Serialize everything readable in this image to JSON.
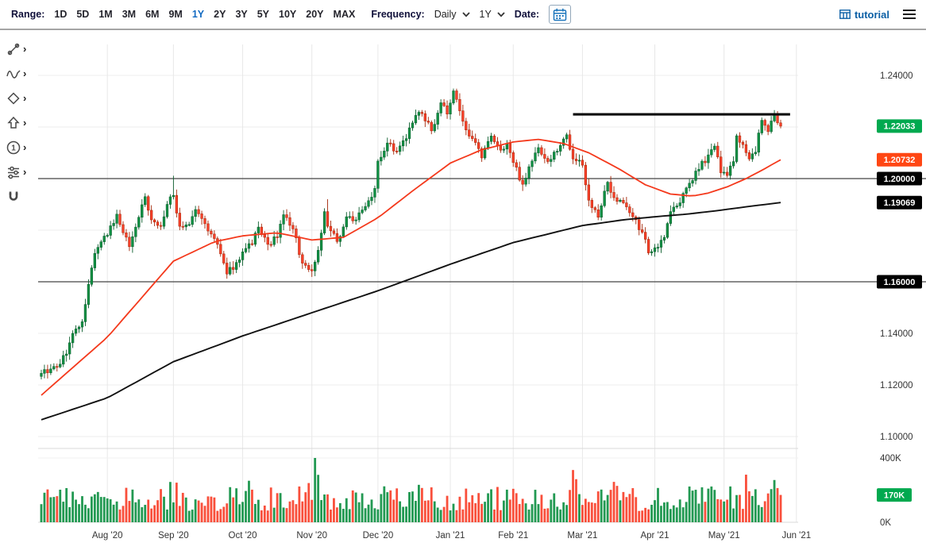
{
  "topbar": {
    "range_label": "Range:",
    "ranges": [
      "1D",
      "5D",
      "1M",
      "3M",
      "6M",
      "9M",
      "1Y",
      "2Y",
      "3Y",
      "5Y",
      "10Y",
      "20Y",
      "MAX"
    ],
    "selected_range": "1Y",
    "frequency_label": "Frequency:",
    "frequency_value": "Daily",
    "period_value": "1Y",
    "date_label": "Date:",
    "tutorial_label": "tutorial",
    "accent_color": "#146bc2"
  },
  "sidebar": {
    "tools": [
      {
        "name": "measure",
        "chevron": true
      },
      {
        "name": "indicators",
        "chevron": true
      },
      {
        "name": "shapes",
        "chevron": true
      },
      {
        "name": "arrow-annotation",
        "chevron": true
      },
      {
        "name": "numbered-annotation",
        "chevron": true
      },
      {
        "name": "compare-settings",
        "chevron": true
      },
      {
        "name": "magnet",
        "chevron": false
      }
    ]
  },
  "chart_data": {
    "type": "candlestick",
    "has_volume_pane": true,
    "x_labels": [
      {
        "label": "Aug '20",
        "i": 21
      },
      {
        "label": "Sep '20",
        "i": 42
      },
      {
        "label": "Oct '20",
        "i": 64
      },
      {
        "label": "Nov '20",
        "i": 86
      },
      {
        "label": "Dec '20",
        "i": 107
      },
      {
        "label": "Jan '21",
        "i": 130
      },
      {
        "label": "Feb '21",
        "i": 150
      },
      {
        "label": "Mar '21",
        "i": 172
      },
      {
        "label": "Apr '21",
        "i": 195
      },
      {
        "label": "May '21",
        "i": 217
      },
      {
        "label": "Jun '21",
        "i": 240
      }
    ],
    "y_axis": {
      "range": [
        1.095,
        1.25
      ],
      "gridline_prices": [
        1.24,
        1.22,
        1.2,
        1.18,
        1.16,
        1.14,
        1.12,
        1.1
      ],
      "visible_ticks": [
        {
          "label": "1.24000",
          "price": 1.24
        },
        {
          "label": "1.14000",
          "price": 1.14
        },
        {
          "label": "1.12000",
          "price": 1.12
        },
        {
          "label": "1.10000",
          "price": 1.1
        }
      ]
    },
    "badges": [
      {
        "label": "1.22033",
        "price": 1.22033,
        "color": "#00a94f",
        "role": "last-price"
      },
      {
        "label": "1.20732",
        "price": 1.20732,
        "color": "#ff4613",
        "role": "ma50-value"
      },
      {
        "label": "1.20000",
        "price": 1.2,
        "color": "#000000",
        "role": "horizontal-level"
      },
      {
        "label": "1.19069",
        "price": 1.19069,
        "color": "#000000",
        "role": "ma200-value"
      },
      {
        "label": "1.16000",
        "price": 1.16,
        "color": "#000000",
        "role": "horizontal-level"
      }
    ],
    "levels": [
      {
        "price": 1.2
      },
      {
        "price": 1.16
      }
    ],
    "trendline": {
      "price": 1.2249,
      "i1": 169,
      "i2": 238
    },
    "candles": {
      "count": 236,
      "last_close": 1.22033,
      "up_color": "#0f9043",
      "up_stroke": "#0a5c2c",
      "down_color": "#f8402a",
      "down_stroke": "#a32708",
      "noise": 0.0013,
      "wick": 0.0019,
      "seed": 9,
      "close_anchors": [
        [
          0,
          1.1245
        ],
        [
          3,
          1.1262
        ],
        [
          5,
          1.127
        ],
        [
          8,
          1.132
        ],
        [
          10,
          1.14
        ],
        [
          13,
          1.1445
        ],
        [
          15,
          1.159
        ],
        [
          17,
          1.171
        ],
        [
          19,
          1.1755
        ],
        [
          21,
          1.178
        ],
        [
          24,
          1.1862
        ],
        [
          26,
          1.179
        ],
        [
          28,
          1.1736
        ],
        [
          31,
          1.185
        ],
        [
          33,
          1.193
        ],
        [
          35,
          1.184
        ],
        [
          38,
          1.1815
        ],
        [
          40,
          1.19
        ],
        [
          42,
          1.1935
        ],
        [
          44,
          1.1815
        ],
        [
          47,
          1.1822
        ],
        [
          49,
          1.188
        ],
        [
          51,
          1.1845
        ],
        [
          54,
          1.1785
        ],
        [
          56,
          1.1745
        ],
        [
          59,
          1.163
        ],
        [
          62,
          1.1675
        ],
        [
          64,
          1.1716
        ],
        [
          67,
          1.1745
        ],
        [
          69,
          1.1812
        ],
        [
          72,
          1.1745
        ],
        [
          75,
          1.1772
        ],
        [
          77,
          1.186
        ],
        [
          80,
          1.1805
        ],
        [
          83,
          1.1672
        ],
        [
          86,
          1.1642
        ],
        [
          88,
          1.1722
        ],
        [
          90,
          1.1872
        ],
        [
          91,
          1.1815
        ],
        [
          94,
          1.1756
        ],
        [
          97,
          1.1852
        ],
        [
          100,
          1.184
        ],
        [
          103,
          1.1892
        ],
        [
          106,
          1.1962
        ],
        [
          107,
          1.2068
        ],
        [
          110,
          1.2138
        ],
        [
          113,
          1.2105
        ],
        [
          116,
          1.2155
        ],
        [
          119,
          1.2245
        ],
        [
          121,
          1.2252
        ],
        [
          124,
          1.2185
        ],
        [
          127,
          1.2294
        ],
        [
          129,
          1.225
        ],
        [
          131,
          1.234
        ],
        [
          134,
          1.2222
        ],
        [
          137,
          1.2155
        ],
        [
          140,
          1.208
        ],
        [
          143,
          1.2165
        ],
        [
          146,
          1.211
        ],
        [
          148,
          1.2136
        ],
        [
          150,
          1.2062
        ],
        [
          153,
          1.1978
        ],
        [
          155,
          1.2046
        ],
        [
          158,
          1.212
        ],
        [
          161,
          1.2066
        ],
        [
          164,
          1.2106
        ],
        [
          167,
          1.217
        ],
        [
          169,
          1.2076
        ],
        [
          172,
          1.2052
        ],
        [
          174,
          1.1916
        ],
        [
          177,
          1.185
        ],
        [
          180,
          1.1986
        ],
        [
          182,
          1.1926
        ],
        [
          185,
          1.1906
        ],
        [
          188,
          1.1852
        ],
        [
          191,
          1.1792
        ],
        [
          193,
          1.1712
        ],
        [
          195,
          1.1732
        ],
        [
          198,
          1.1772
        ],
        [
          200,
          1.1872
        ],
        [
          203,
          1.1906
        ],
        [
          206,
          1.1982
        ],
        [
          209,
          1.2036
        ],
        [
          212,
          1.2092
        ],
        [
          214,
          1.2126
        ],
        [
          216,
          1.2022
        ],
        [
          218,
          1.2012
        ],
        [
          220,
          1.2066
        ],
        [
          221,
          1.2166
        ],
        [
          223,
          1.2132
        ],
        [
          225,
          1.2076
        ],
        [
          227,
          1.2102
        ],
        [
          229,
          1.2226
        ],
        [
          231,
          1.2182
        ],
        [
          233,
          1.2252
        ],
        [
          234,
          1.2216
        ],
        [
          235,
          1.22033
        ]
      ],
      "high_overrides": {
        "42": 1.2011,
        "91": 1.192,
        "131": 1.2349
      },
      "low_overrides": {
        "59": 1.1612,
        "83": 1.165,
        "153": 1.1952,
        "193": 1.1704
      }
    },
    "ma50": {
      "color": "#f4391c",
      "anchors": [
        [
          0,
          1.116
        ],
        [
          21,
          1.1385
        ],
        [
          42,
          1.168
        ],
        [
          55,
          1.1755
        ],
        [
          64,
          1.1778
        ],
        [
          75,
          1.179
        ],
        [
          86,
          1.1762
        ],
        [
          96,
          1.1772
        ],
        [
          107,
          1.1848
        ],
        [
          118,
          1.1952
        ],
        [
          130,
          1.206
        ],
        [
          140,
          1.2112
        ],
        [
          150,
          1.2142
        ],
        [
          158,
          1.2152
        ],
        [
          166,
          1.2136
        ],
        [
          174,
          1.21
        ],
        [
          183,
          1.2042
        ],
        [
          192,
          1.1976
        ],
        [
          200,
          1.194
        ],
        [
          207,
          1.1932
        ],
        [
          212,
          1.1944
        ],
        [
          218,
          1.1968
        ],
        [
          224,
          1.2
        ],
        [
          229,
          1.2032
        ],
        [
          235,
          1.2073
        ]
      ]
    },
    "ma200": {
      "color": "#111111",
      "anchors": [
        [
          0,
          1.1065
        ],
        [
          21,
          1.115
        ],
        [
          42,
          1.129
        ],
        [
          64,
          1.139
        ],
        [
          86,
          1.148
        ],
        [
          107,
          1.1565
        ],
        [
          130,
          1.1668
        ],
        [
          150,
          1.1752
        ],
        [
          172,
          1.1818
        ],
        [
          185,
          1.184
        ],
        [
          195,
          1.1852
        ],
        [
          205,
          1.1862
        ],
        [
          215,
          1.1876
        ],
        [
          225,
          1.1892
        ],
        [
          235,
          1.1907
        ]
      ]
    },
    "volume": {
      "axis_labels": [
        {
          "label": "400K",
          "value": 400
        },
        {
          "label": "0K",
          "value": 0
        }
      ],
      "badge": {
        "label": "170K",
        "value": 170,
        "color": "#00a94f"
      },
      "max": 400,
      "base_min": 70,
      "base_max": 225,
      "overrides": {
        "87": 400,
        "88": 295,
        "169": 325,
        "170": 268,
        "235": 170
      }
    }
  }
}
